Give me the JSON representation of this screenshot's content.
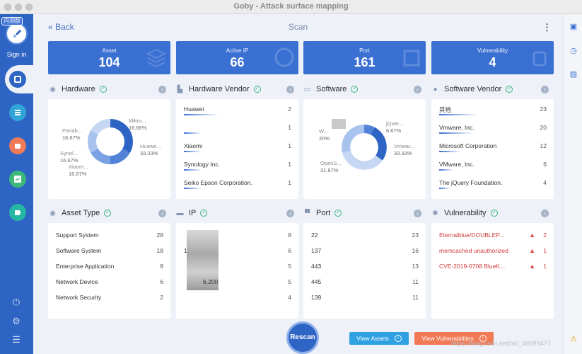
{
  "window": {
    "title": "Goby - Attack surface mapping"
  },
  "sidebar": {
    "badge": "内测版",
    "signin": "Sign in"
  },
  "header": {
    "back": "Back",
    "title": "Scan",
    "menu": "⋮"
  },
  "stats": [
    {
      "label": "Asset",
      "value": "104"
    },
    {
      "label": "Active IP",
      "value": "66"
    },
    {
      "label": "Port",
      "value": "161"
    },
    {
      "label": "Vulnerability",
      "value": "4"
    }
  ],
  "sections": {
    "hardware": "Hardware",
    "hardware_vendor": "Hardware Vendor",
    "software": "Software",
    "software_vendor": "Software Vendor",
    "asset_type": "Asset Type",
    "ip": "IP",
    "port": "Port",
    "vulnerability": "Vulnerability"
  },
  "hardware_chart": {
    "labels": [
      {
        "name": "Mikro...",
        "pct": "16.66%"
      },
      {
        "name": "Huawe...",
        "pct": "33.33%"
      },
      {
        "name": "Panab...",
        "pct": "16.67%"
      },
      {
        "name": "Synol...",
        "pct": "16.67%"
      },
      {
        "name": "Xiaom...",
        "pct": "16.67%"
      }
    ]
  },
  "software_chart": {
    "labels": [
      {
        "name": "jQuer...",
        "pct": "6.67%"
      },
      {
        "name": "Vmwar...",
        "pct": "33.33%"
      },
      {
        "name": "W...",
        "pct": "20%"
      },
      {
        "name": "OpenS...",
        "pct": "31.67%"
      }
    ]
  },
  "hardware_vendor": [
    {
      "name": "Huawei",
      "count": "2"
    },
    {
      "name": "",
      "count": "1"
    },
    {
      "name": "Xiaomi",
      "count": "1"
    },
    {
      "name": "Synology Inc.",
      "count": "1"
    },
    {
      "name": "Seiko Epson Corporation.",
      "count": "1"
    }
  ],
  "software_vendor": [
    {
      "name": "其他",
      "count": "23"
    },
    {
      "name": "Vmware, Inc.",
      "count": "20"
    },
    {
      "name": "Microsoft Corporation",
      "count": "12"
    },
    {
      "name": "VMware, Inc.",
      "count": "6"
    },
    {
      "name": "The jQuery Foundation.",
      "count": "4"
    }
  ],
  "asset_type": [
    {
      "name": "Support System",
      "count": "28"
    },
    {
      "name": "Software System",
      "count": "18"
    },
    {
      "name": "Enterprise Application",
      "count": "8"
    },
    {
      "name": "Network Device",
      "count": "6"
    },
    {
      "name": "Network Security",
      "count": "2"
    }
  ],
  "ip": [
    {
      "name": "",
      "count": "8"
    },
    {
      "name": "1",
      "count": "6"
    },
    {
      "name": "",
      "count": "5"
    },
    {
      "name": "6.200",
      "count": "5"
    },
    {
      "name": "",
      "count": "4"
    }
  ],
  "port": [
    {
      "name": "22",
      "count": "23"
    },
    {
      "name": "137",
      "count": "16"
    },
    {
      "name": "443",
      "count": "13"
    },
    {
      "name": "445",
      "count": "11"
    },
    {
      "name": "139",
      "count": "11"
    }
  ],
  "vulnerability": [
    {
      "name": "Eternalblue/DOUBLEP...",
      "count": "2"
    },
    {
      "name": "memcached unauthorized",
      "count": "1"
    },
    {
      "name": "CVE-2019-0708 BlueK...",
      "count": "1"
    }
  ],
  "buttons": {
    "rescan": "Rescan",
    "view_assets": "View Assets",
    "view_vulns": "View Vulnerabilities"
  },
  "watermark": "https://blog.csdn.net/m0_46699477",
  "colors": {
    "primary": "#3b70d3",
    "sidebar": "#2e64c3",
    "vuln_red": "#d03b3b",
    "assets_btn": "#2fa0e0",
    "vuln_btn": "#f07a55"
  }
}
